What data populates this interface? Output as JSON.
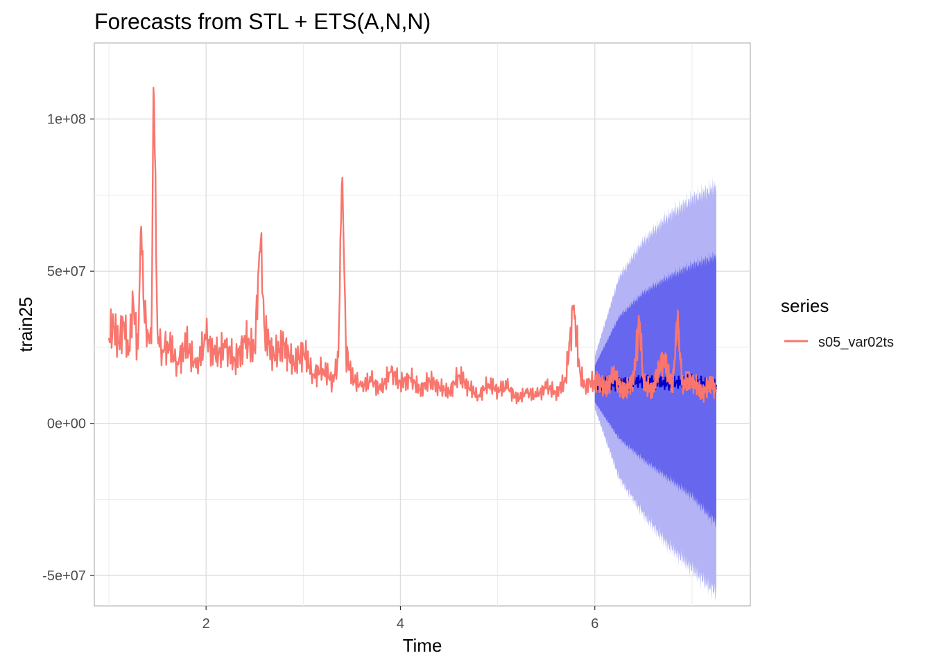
{
  "chart_data": {
    "type": "line",
    "title": "Forecasts from STL +  ETS(A,N,N)",
    "xlabel": "Time",
    "ylabel": "train25",
    "xlim": [
      0.85,
      7.6
    ],
    "ylim": [
      -60000000,
      125000000
    ],
    "x_ticks": [
      2,
      4,
      6
    ],
    "x_tick_labels": [
      "2",
      "4",
      "6"
    ],
    "y_ticks": [
      -50000000,
      0,
      50000000,
      100000000
    ],
    "y_tick_labels": [
      "-5e+07",
      "0e+00",
      "5e+07",
      "1e+08"
    ],
    "grid": true,
    "legend": {
      "title": "series",
      "position": "right",
      "entries": [
        {
          "label": "s05_var02ts",
          "color": "#F8766D"
        }
      ]
    },
    "colors": {
      "series": "#F8766D",
      "point_forecast": "#0000CC",
      "pi80": "#6666EE",
      "pi95": "#B3B3F5"
    },
    "series": [
      {
        "name": "s05_var02ts",
        "x": [
          1.0,
          1.05,
          1.1,
          1.15,
          1.2,
          1.25,
          1.3,
          1.33,
          1.36,
          1.4,
          1.44,
          1.46,
          1.5,
          1.55,
          1.6,
          1.7,
          1.8,
          1.9,
          2.0,
          2.1,
          2.2,
          2.3,
          2.4,
          2.5,
          2.56,
          2.6,
          2.7,
          2.8,
          2.9,
          3.0,
          3.1,
          3.2,
          3.3,
          3.36,
          3.4,
          3.44,
          3.5,
          3.6,
          3.7,
          3.8,
          3.9,
          4.0,
          4.1,
          4.2,
          4.3,
          4.4,
          4.5,
          4.6,
          4.7,
          4.8,
          4.9,
          5.0,
          5.1,
          5.2,
          5.3,
          5.4,
          5.5,
          5.6,
          5.7,
          5.78,
          5.85,
          5.9,
          5.95,
          6.0,
          6.05,
          6.1,
          6.2,
          6.3,
          6.4,
          6.46,
          6.5,
          6.6,
          6.7,
          6.8,
          6.85,
          6.9,
          7.0,
          7.1,
          7.2,
          7.25
        ],
        "y": [
          28000000,
          32000000,
          26000000,
          34000000,
          22000000,
          40000000,
          24000000,
          68000000,
          38000000,
          30000000,
          26000000,
          118000000,
          30000000,
          24000000,
          27000000,
          20000000,
          26000000,
          18000000,
          28000000,
          22000000,
          25000000,
          20000000,
          27000000,
          24000000,
          62000000,
          30000000,
          22000000,
          26000000,
          19000000,
          24000000,
          16000000,
          18000000,
          14000000,
          20000000,
          85000000,
          24000000,
          15000000,
          12000000,
          14000000,
          11000000,
          17000000,
          13000000,
          15000000,
          11000000,
          14000000,
          12000000,
          10000000,
          16000000,
          12000000,
          9000000,
          13000000,
          11000000,
          12000000,
          8000000,
          10000000,
          9000000,
          12000000,
          10000000,
          14000000,
          38000000,
          16000000,
          12000000,
          14000000,
          13000000,
          14000000,
          11000000,
          16000000,
          10000000,
          15000000,
          34000000,
          13000000,
          11000000,
          22000000,
          12000000,
          34000000,
          13000000,
          14000000,
          10000000,
          13000000,
          11000000
        ]
      }
    ],
    "forecast": {
      "x": [
        6.0,
        6.25,
        6.5,
        6.75,
        7.0,
        7.25
      ],
      "mean": [
        13000000,
        13000000,
        14000000,
        13000000,
        14000000,
        12000000
      ],
      "lo80": [
        7000000,
        -5000000,
        -12000000,
        -18000000,
        -24000000,
        -33000000
      ],
      "hi80": [
        19000000,
        35000000,
        43000000,
        48000000,
        52000000,
        55000000
      ],
      "lo95": [
        5000000,
        -18000000,
        -30000000,
        -40000000,
        -48000000,
        -56000000
      ],
      "hi95": [
        22000000,
        48000000,
        60000000,
        68000000,
        74000000,
        78000000
      ]
    }
  }
}
